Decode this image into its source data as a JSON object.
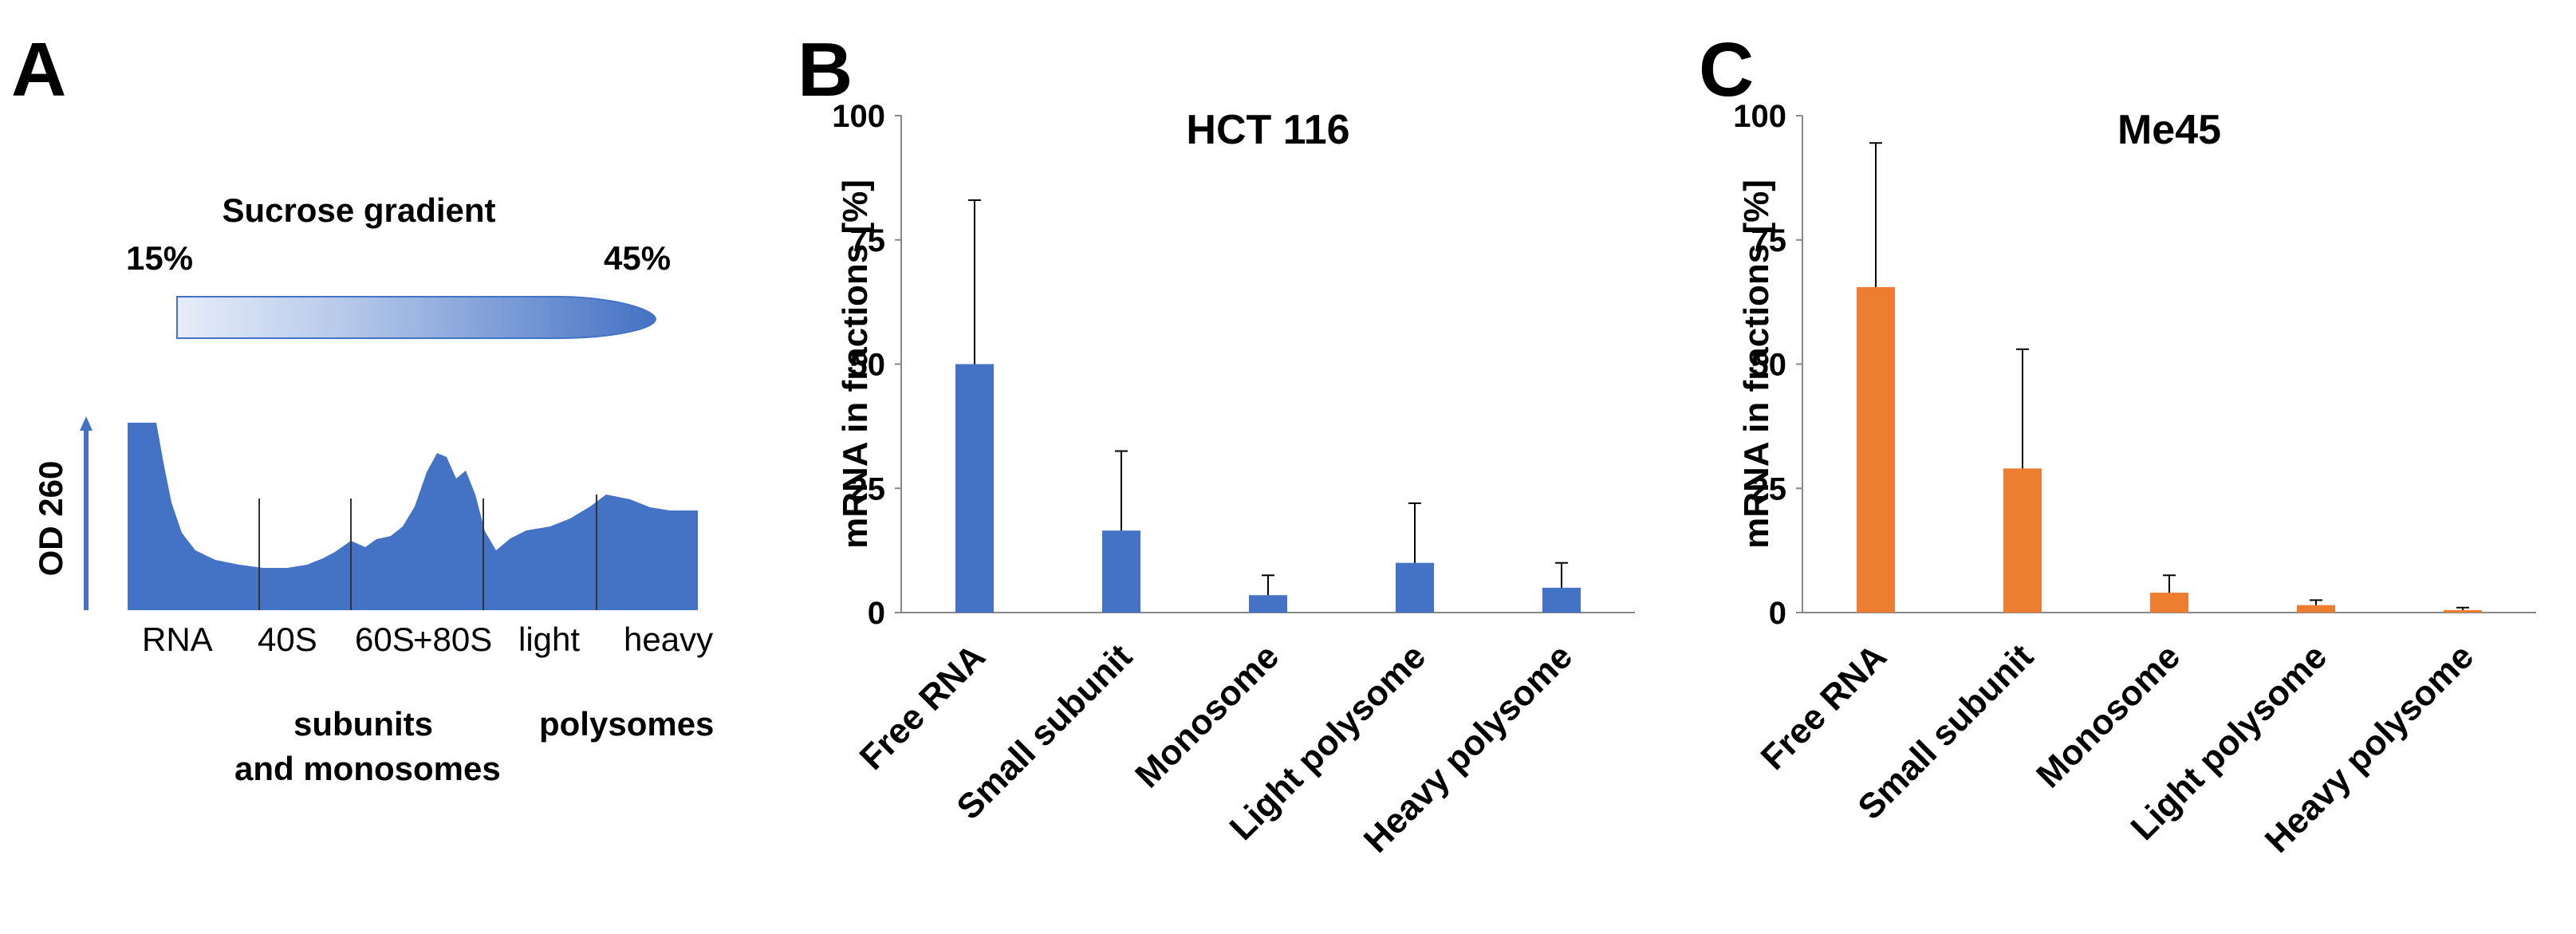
{
  "panels": {
    "a": "A",
    "b": "B",
    "c": "C"
  },
  "panel_a": {
    "gradient_title": "Sucrose gradient",
    "gradient_left": "15%",
    "gradient_right": "45%",
    "ylabel": "OD 260",
    "gradient_color": "#4472c4",
    "fraction_labels": [
      "RNA",
      "40S",
      "60S",
      "+80S",
      "light",
      "heavy"
    ],
    "group_labels": {
      "subunits_line1": "subunits",
      "subunits_line2": "and monosomes",
      "polysomes": "polysomes"
    }
  },
  "chart_data": [
    {
      "type": "bar",
      "title": "HCT 116",
      "xlabel": "",
      "ylabel": "mRNA in fractions [%]",
      "ylim": [
        0,
        100
      ],
      "yticks": [
        0,
        25,
        50,
        75,
        100
      ],
      "color": "#4472c4",
      "categories": [
        "Free RNA",
        "Small subunit",
        "Monosome",
        "Light polysome",
        "Heavy polysome"
      ],
      "values": [
        50,
        16.5,
        3.5,
        10,
        5
      ],
      "errors": [
        33,
        16,
        4,
        12,
        5
      ],
      "grid": false
    },
    {
      "type": "bar",
      "title": "Me45",
      "xlabel": "",
      "ylabel": "mRNA in fractions [%]",
      "ylim": [
        0,
        100
      ],
      "yticks": [
        0,
        25,
        50,
        75,
        100
      ],
      "color": "#ed7d31",
      "categories": [
        "Free RNA",
        "Small subunit",
        "Monosome",
        "Light polysome",
        "Heavy polysome"
      ],
      "values": [
        65.5,
        29,
        4,
        1.5,
        0.5
      ],
      "errors": [
        29,
        24,
        3.5,
        1,
        0.5
      ],
      "grid": false
    }
  ]
}
